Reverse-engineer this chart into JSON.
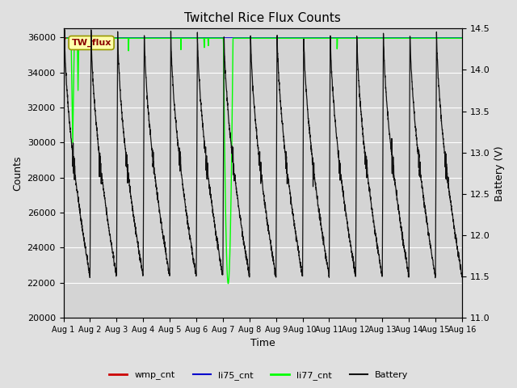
{
  "title": "Twitchel Rice Flux Counts",
  "xlabel": "Time",
  "ylabel_left": "Counts",
  "ylabel_right": "Battery (V)",
  "ylim_left": [
    20000,
    36500
  ],
  "ylim_right": [
    11.0,
    14.5
  ],
  "xlim": [
    0,
    15
  ],
  "xtick_labels": [
    "Aug 1",
    "Aug 2",
    "Aug 3",
    "Aug 4",
    "Aug 5",
    "Aug 6",
    "Aug 7",
    "Aug 8",
    "Aug 9",
    "Aug 10",
    "Aug 11",
    "Aug 12",
    "Aug 13",
    "Aug 14",
    "Aug 15",
    "Aug 16"
  ],
  "yticks_left": [
    20000,
    22000,
    24000,
    26000,
    28000,
    30000,
    32000,
    34000,
    36000
  ],
  "yticks_right": [
    11.0,
    11.5,
    12.0,
    12.5,
    13.0,
    13.5,
    14.0,
    14.5
  ],
  "background_color": "#e0e0e0",
  "plot_bg_color": "#d4d4d4",
  "grid_color": "#ffffff",
  "legend_annotation_text": "TW_flux",
  "li77_color": "#00ff00",
  "li75_color": "#0000cc",
  "wmp_color": "#cc0000",
  "battery_color": "#111111",
  "battery_v_min": 11.5,
  "battery_v_max": 14.5,
  "battery_v_floor": 11.0,
  "counts_min": 20000,
  "counts_max": 36500
}
